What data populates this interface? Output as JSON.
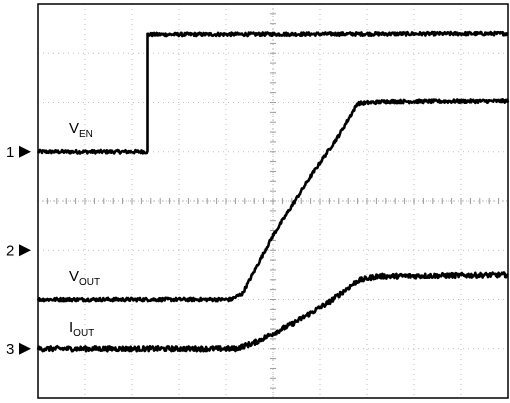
{
  "chart_data": {
    "type": "line",
    "title": "",
    "xlabel": "",
    "ylabel": "",
    "grid": true,
    "x_divisions": 10,
    "y_divisions": 8,
    "xlim": [
      0,
      10
    ],
    "ylim": [
      0,
      8
    ],
    "channel_markers": [
      {
        "number": "1",
        "glyph": "▶",
        "ground_div": 5.0
      },
      {
        "number": "2",
        "glyph": "▶",
        "ground_div": 3.0
      },
      {
        "number": "3",
        "glyph": "▶",
        "ground_div": 1.0
      }
    ],
    "series": [
      {
        "name": "VEN",
        "label_main": "V",
        "label_sub": "EN",
        "color": "#000000",
        "noise": 0.035,
        "points": [
          [
            0,
            5.0
          ],
          [
            2.33,
            5.0
          ],
          [
            2.33,
            7.38
          ],
          [
            10,
            7.4
          ]
        ]
      },
      {
        "name": "VOUT",
        "label_main": "V",
        "label_sub": "OUT",
        "color": "#000000",
        "noise": 0.035,
        "points": [
          [
            0,
            2.0
          ],
          [
            4.1,
            2.0
          ],
          [
            4.35,
            2.12
          ],
          [
            5.0,
            3.3
          ],
          [
            5.8,
            4.5
          ],
          [
            6.4,
            5.33
          ],
          [
            6.8,
            5.98
          ],
          [
            7.4,
            6.02
          ],
          [
            10,
            6.03
          ]
        ]
      },
      {
        "name": "IOUT",
        "label_main": "I",
        "label_sub": "OUT",
        "color": "#000000",
        "noise": 0.05,
        "points": [
          [
            0,
            1.0
          ],
          [
            4.2,
            1.0
          ],
          [
            4.6,
            1.12
          ],
          [
            5.4,
            1.5
          ],
          [
            6.2,
            1.95
          ],
          [
            6.8,
            2.38
          ],
          [
            7.2,
            2.47
          ],
          [
            10,
            2.5
          ]
        ]
      }
    ]
  }
}
